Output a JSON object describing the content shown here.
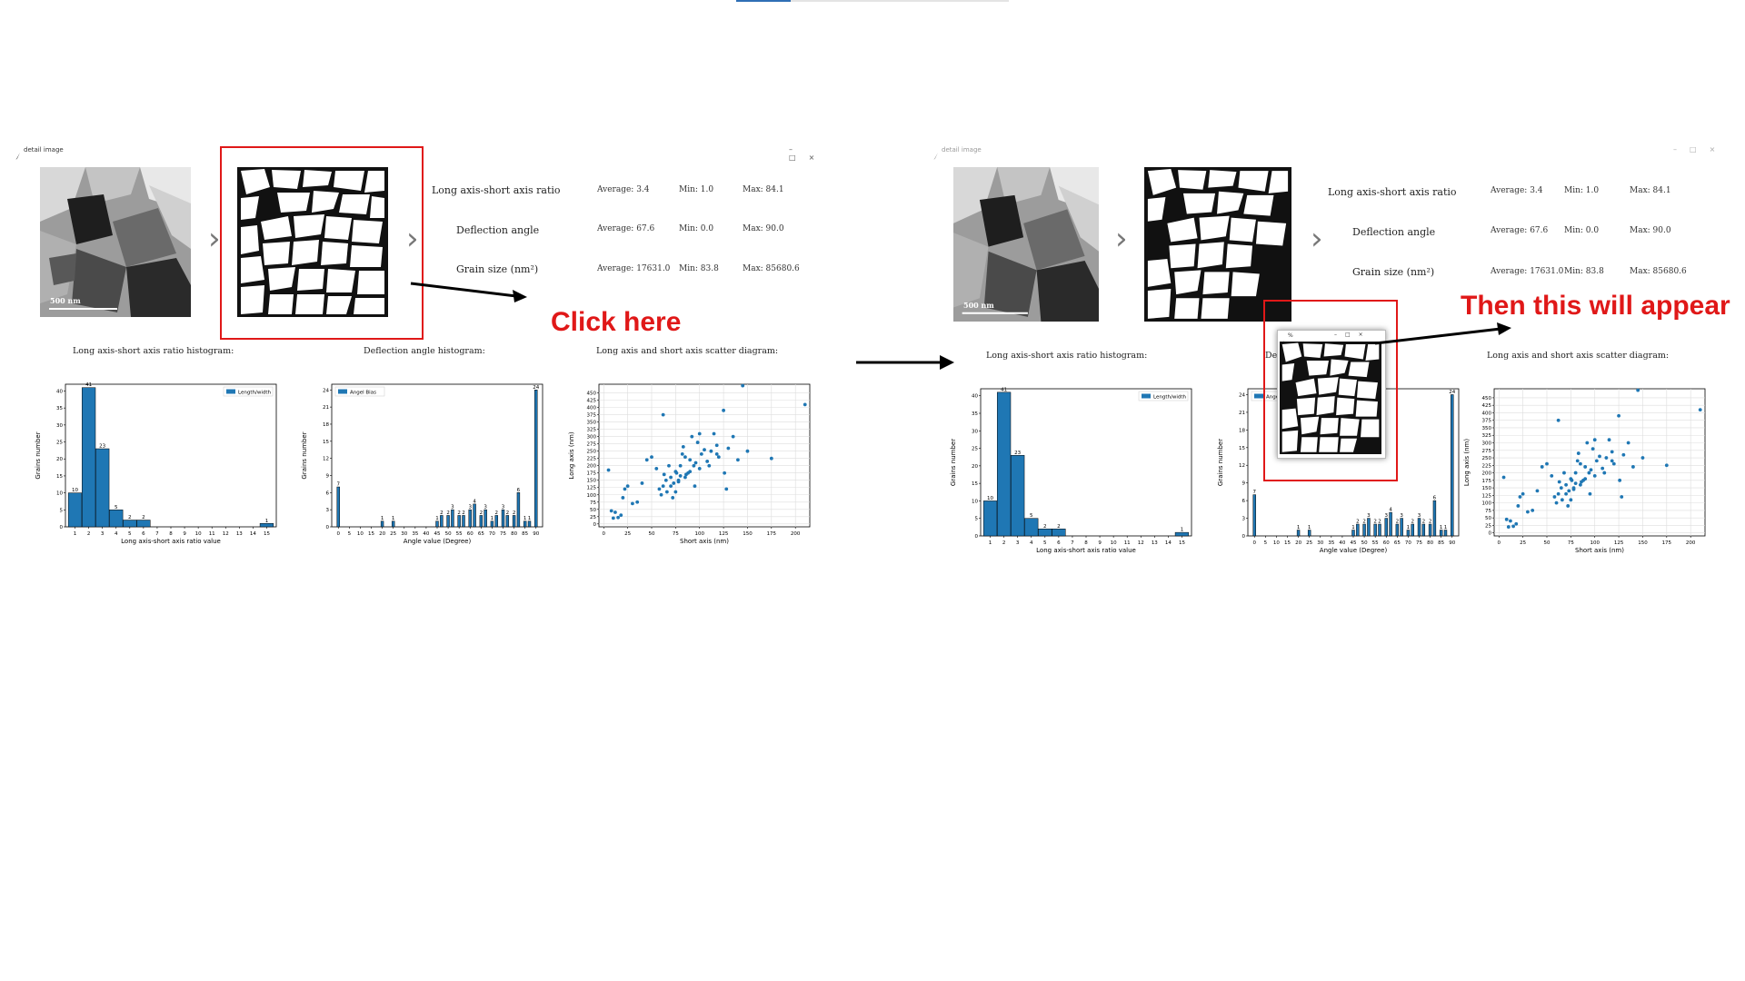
{
  "window_title": "detail image",
  "window_controls": [
    "–",
    "□",
    "×"
  ],
  "scale_bar_label": "500 nm",
  "stats": [
    {
      "label": "Long axis-short axis ratio",
      "average": "Average:  3.4",
      "min": "Min:  1.0",
      "max": "Max:  84.1"
    },
    {
      "label": "Deflection angle",
      "average": "Average:  67.6",
      "min": "Min:  0.0",
      "max": "Max:  90.0"
    },
    {
      "label": "Grain size (nm²)",
      "average": "Average:  17631.0",
      "min": "Min:  83.8",
      "max": "Max:  85680.6"
    }
  ],
  "chart_titles": {
    "ratio": "Long axis-short axis ratio histogram:",
    "angle": "Deflection angle histogram:",
    "scatter": "Long axis and short axis scatter diagram:"
  },
  "callouts": {
    "click": "Click here",
    "appear": "Then this will appear"
  },
  "popup": {
    "title": "%",
    "controls": [
      "–",
      "□",
      "×"
    ]
  },
  "colors": {
    "bar": "#1f77b4",
    "callout": "#e01818"
  },
  "icons": [
    "feather-icon",
    "chevron-right-icon",
    "arrow-right-icon"
  ],
  "chart_data": [
    {
      "type": "bar",
      "ylabel": "Grains number",
      "xlabel": "Long axis-short axis ratio value",
      "legend": "Length/width",
      "legend_position": "top-right",
      "categories": [
        1,
        2,
        3,
        4,
        5,
        6,
        15
      ],
      "values": [
        10,
        41,
        23,
        5,
        2,
        2,
        1
      ],
      "labels": [
        "10",
        "41",
        "23",
        "5",
        "2",
        "2",
        "1"
      ],
      "xticks": [
        1,
        2,
        3,
        4,
        5,
        6,
        7,
        8,
        9,
        10,
        11,
        12,
        13,
        14,
        15
      ],
      "xlim": [
        0.3,
        15.7
      ],
      "ylim": [
        0,
        42
      ],
      "yticks": [
        0,
        5,
        10,
        15,
        20,
        25,
        30,
        35,
        40
      ]
    },
    {
      "type": "bar",
      "ylabel": "Grains number",
      "xlabel": "Angle value (Degree)",
      "legend": "Angel Bias",
      "legend_position": "top-left",
      "categories": [
        0,
        20,
        25,
        45,
        47,
        50,
        52,
        55,
        57,
        60,
        62,
        65,
        67,
        70,
        72,
        75,
        77,
        80,
        82,
        85,
        87,
        90
      ],
      "values": [
        7,
        1,
        1,
        1,
        2,
        2,
        3,
        2,
        2,
        3,
        4,
        2,
        3,
        1,
        2,
        3,
        2,
        2,
        6,
        1,
        1,
        24
      ],
      "labels": [
        "7",
        "1",
        "1",
        "1",
        "2",
        "2",
        "3",
        "2",
        "2",
        "3",
        "4",
        "2",
        "3",
        "1",
        "2",
        "3",
        "2",
        "2",
        "6",
        "1",
        "1",
        "24"
      ],
      "xticks": [
        0,
        5,
        10,
        15,
        20,
        25,
        30,
        35,
        40,
        45,
        50,
        55,
        60,
        65,
        70,
        75,
        80,
        85,
        90
      ],
      "xlim": [
        -3,
        93
      ],
      "ylim": [
        0,
        25
      ],
      "yticks": [
        0,
        3,
        6,
        9,
        12,
        15,
        18,
        21,
        24
      ]
    },
    {
      "type": "scatter",
      "ylabel": "Long axis (nm)",
      "xlabel": "Short axis (nm)",
      "xlim": [
        -5,
        215
      ],
      "ylim": [
        -10,
        480
      ],
      "xticks": [
        0,
        25,
        50,
        75,
        100,
        125,
        150,
        175,
        200
      ],
      "yticks": [
        0,
        25,
        50,
        75,
        100,
        125,
        150,
        175,
        200,
        225,
        250,
        275,
        300,
        325,
        350,
        375,
        400,
        425,
        450
      ],
      "grid": true,
      "x": [
        5,
        10,
        12,
        15,
        18,
        20,
        25,
        30,
        35,
        40,
        45,
        50,
        55,
        58,
        60,
        62,
        63,
        65,
        66,
        68,
        70,
        70,
        72,
        73,
        75,
        75,
        76,
        78,
        80,
        80,
        82,
        83,
        85,
        86,
        88,
        90,
        90,
        92,
        95,
        96,
        98,
        100,
        100,
        102,
        105,
        108,
        110,
        112,
        115,
        118,
        120,
        125,
        126,
        128,
        130,
        135,
        140,
        145,
        150,
        175,
        210,
        8,
        22,
        62,
        78,
        85,
        94,
        118
      ],
      "y": [
        185,
        20,
        40,
        22,
        30,
        90,
        130,
        70,
        75,
        140,
        220,
        230,
        190,
        120,
        100,
        130,
        170,
        150,
        110,
        200,
        160,
        130,
        90,
        140,
        180,
        110,
        175,
        150,
        200,
        165,
        240,
        265,
        230,
        170,
        175,
        180,
        220,
        300,
        130,
        210,
        280,
        310,
        190,
        240,
        255,
        215,
        200,
        250,
        310,
        270,
        230,
        390,
        175,
        120,
        260,
        300,
        220,
        475,
        250,
        225,
        410,
        45,
        120,
        375,
        145,
        160,
        200,
        240
      ]
    }
  ]
}
